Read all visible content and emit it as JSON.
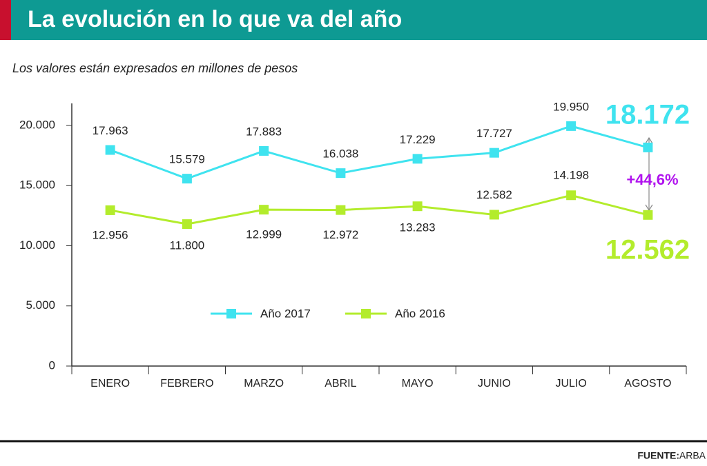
{
  "chart_data": {
    "type": "line",
    "title": "La evolución en lo que va del año",
    "subtitle": "Los valores están expresados en millones de pesos",
    "categories": [
      "ENERO",
      "FEBRERO",
      "MARZO",
      "ABRIL",
      "MAYO",
      "JUNIO",
      "JULIO",
      "AGOSTO"
    ],
    "series": [
      {
        "name": "Año 2017",
        "color": "#3fe3ef",
        "values": [
          17963,
          15579,
          17883,
          16038,
          17229,
          17727,
          19950,
          18172
        ],
        "value_labels": [
          "17.963",
          "15.579",
          "17.883",
          "16.038",
          "17.229",
          "17.727",
          "19.950",
          "18.172"
        ]
      },
      {
        "name": "Año 2016",
        "color": "#b3ec2c",
        "values": [
          12956,
          11800,
          12999,
          12972,
          13283,
          12582,
          14198,
          12562
        ],
        "value_labels": [
          "12.956",
          "11.800",
          "12.999",
          "12.972",
          "13.283",
          "12.582",
          "14.198",
          "12.562"
        ]
      }
    ],
    "ylim": [
      0,
      22000
    ],
    "yticks": [
      0,
      {
        "value": 5000,
        "label": "5.000"
      },
      {
        "value": 10000,
        "label": "10.000"
      },
      {
        "value": 15000,
        "label": "15.000"
      },
      {
        "value": 20000,
        "label": "20.000"
      }
    ],
    "annotation": "+44,6%",
    "annotation_color": "#b012ee",
    "source_label": "FUENTE:",
    "source": "ARBA"
  }
}
